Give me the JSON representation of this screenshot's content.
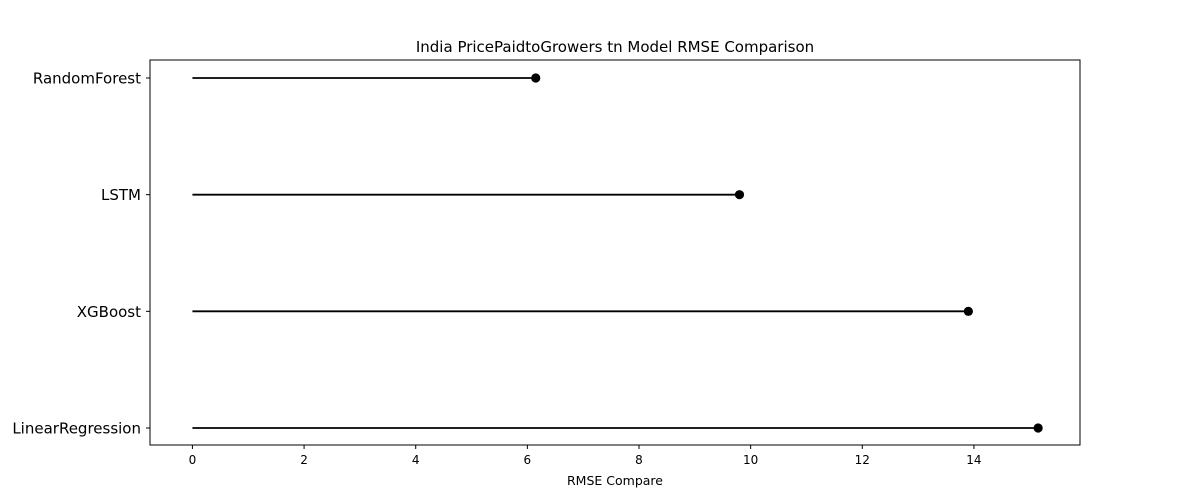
{
  "chart_data": {
    "type": "lollipop",
    "title": "India PricePaidtoGrowers tn Model RMSE Comparison",
    "xlabel": "RMSE Compare",
    "ylabel": "",
    "categories": [
      "RandomForest",
      "LSTM",
      "XGBoost",
      "LinearRegression"
    ],
    "values": [
      6.15,
      9.8,
      13.9,
      15.15
    ],
    "xlim": [
      -0.76,
      15.9
    ],
    "xticks": [
      0,
      2,
      4,
      6,
      8,
      10,
      12,
      14
    ],
    "grid": false,
    "line_color": "#000000",
    "marker_color": "#000000"
  }
}
